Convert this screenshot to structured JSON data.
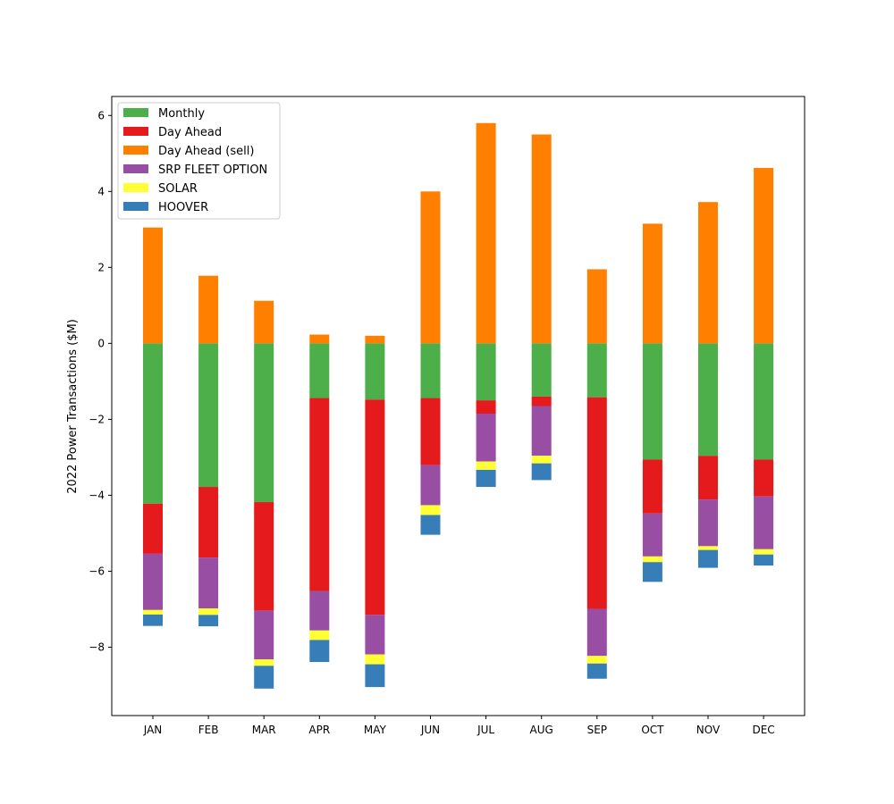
{
  "chart_data": {
    "type": "bar",
    "stacked": true,
    "title": "",
    "xlabel": "",
    "ylabel": "2022 Power Transactions ($M)",
    "ylim": [
      -9.8,
      6.5
    ],
    "yticks": [
      -8,
      -6,
      -4,
      -2,
      0,
      2,
      4,
      6
    ],
    "grid": false,
    "legend_position": "upper-left",
    "categories": [
      "JAN",
      "FEB",
      "MAR",
      "APR",
      "MAY",
      "JUN",
      "JUL",
      "AUG",
      "SEP",
      "OCT",
      "NOV",
      "DEC"
    ],
    "series": [
      {
        "name": "Monthly",
        "color": "#4daf4a",
        "values": [
          -4.22,
          -3.78,
          -4.18,
          -1.44,
          -1.48,
          -1.44,
          -1.5,
          -1.4,
          -1.42,
          -3.06,
          -2.96,
          -3.06
        ]
      },
      {
        "name": "Day Ahead",
        "color": "#e41a1c",
        "values": [
          -1.32,
          -1.86,
          -2.86,
          -5.08,
          -5.67,
          -1.77,
          -0.35,
          -0.25,
          -5.57,
          -1.42,
          -1.15,
          -0.97
        ]
      },
      {
        "name": "Day Ahead (sell)",
        "color": "#ff7f00",
        "values": [
          3.05,
          1.78,
          1.12,
          0.23,
          0.2,
          4.0,
          5.8,
          5.5,
          1.95,
          3.15,
          3.72,
          4.62
        ]
      },
      {
        "name": "SRP FLEET OPTION",
        "color": "#984ea3",
        "values": [
          -1.48,
          -1.34,
          -1.28,
          -1.04,
          -1.04,
          -1.05,
          -1.26,
          -1.31,
          -1.24,
          -1.13,
          -1.23,
          -1.39
        ]
      },
      {
        "name": "SOLAR",
        "color": "#ffff33",
        "values": [
          -0.12,
          -0.17,
          -0.17,
          -0.25,
          -0.26,
          -0.26,
          -0.22,
          -0.2,
          -0.2,
          -0.15,
          -0.1,
          -0.14
        ]
      },
      {
        "name": "HOOVER",
        "color": "#377eb8",
        "values": [
          -0.3,
          -0.3,
          -0.6,
          -0.58,
          -0.6,
          -0.52,
          -0.45,
          -0.44,
          -0.4,
          -0.52,
          -0.47,
          -0.29
        ]
      }
    ]
  }
}
